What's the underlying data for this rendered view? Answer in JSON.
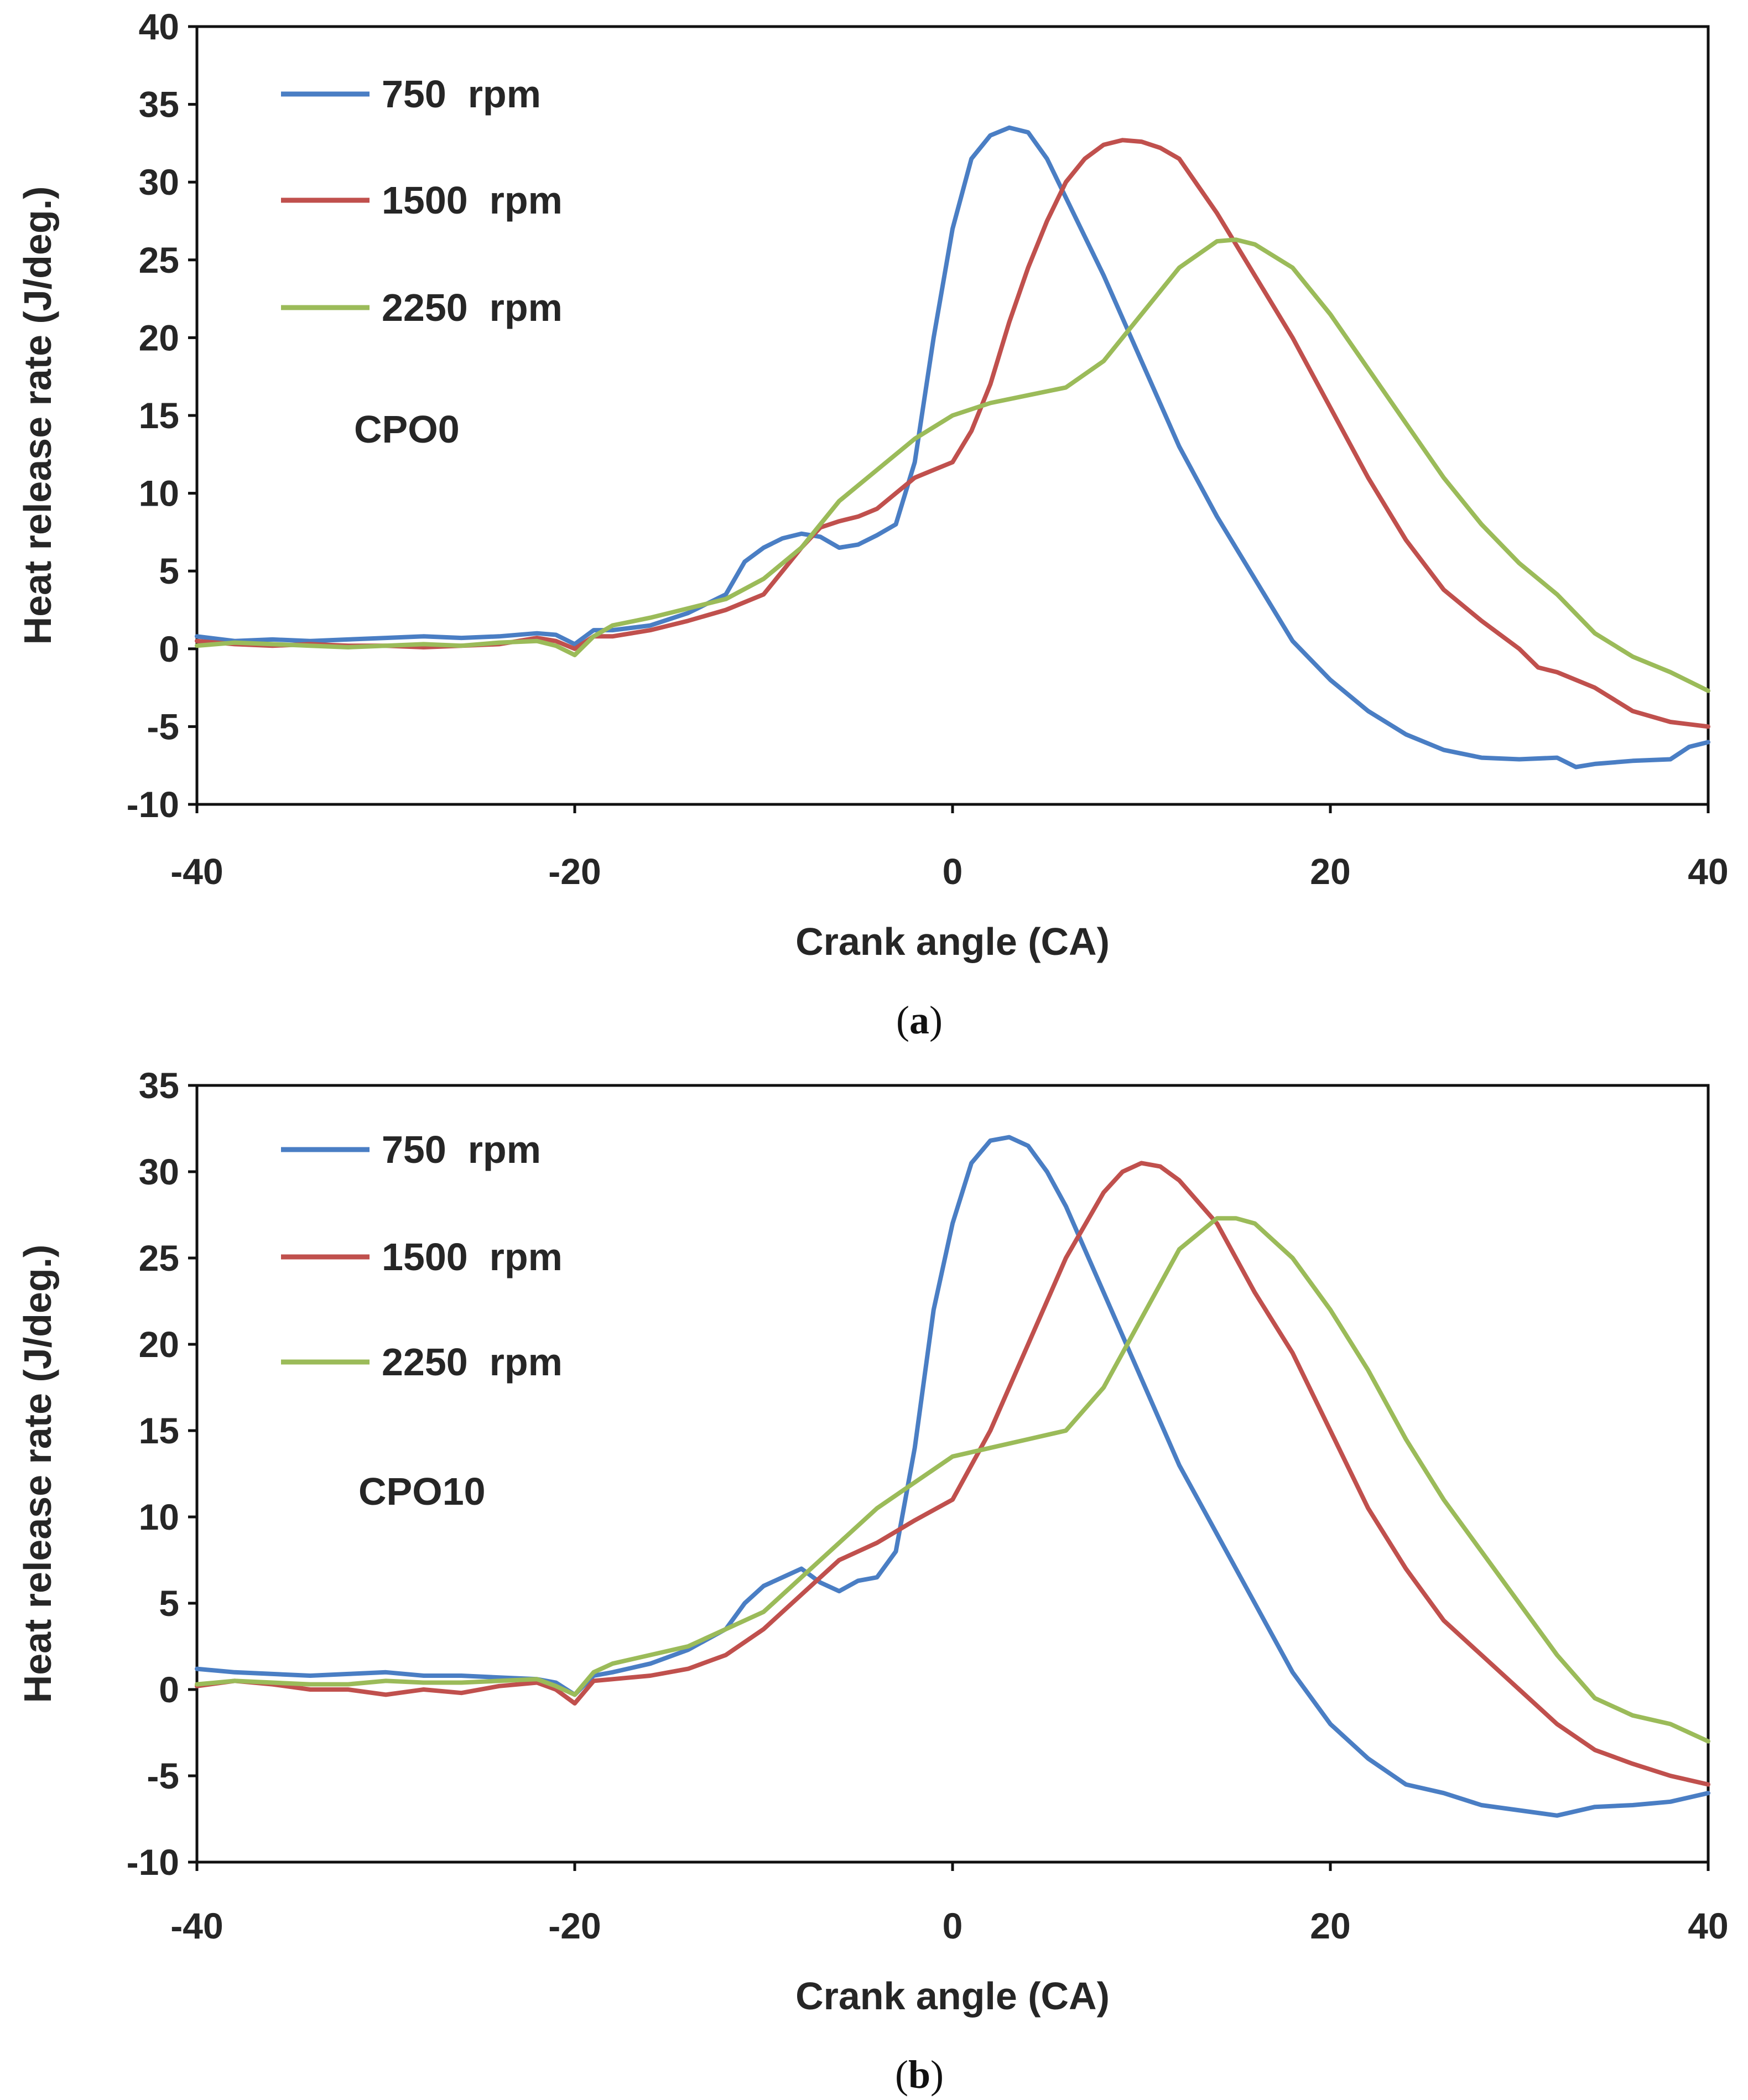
{
  "colors": {
    "s750": "#4A7EC4",
    "s1500": "#C0504D",
    "s2250": "#9BBB59"
  },
  "chart_data": [
    {
      "type": "line",
      "annotation": "CPO0",
      "caption": "(a)",
      "caption_letter": "a",
      "xlabel": "Crank angle (CA)",
      "ylabel": "Heat release rate (J/deg.)",
      "xlim": [
        -40,
        40
      ],
      "ylim": [
        -10,
        40
      ],
      "xticks": [
        -40,
        -20,
        0,
        20,
        40
      ],
      "yticks": [
        -10,
        -5,
        0,
        5,
        10,
        15,
        20,
        25,
        30,
        35,
        40
      ],
      "legend_position": "top-left",
      "series": [
        {
          "name": "750  rpm",
          "color_key": "s750",
          "x": [
            -40,
            -38,
            -36,
            -34,
            -32,
            -30,
            -28,
            -26,
            -24,
            -22,
            -21,
            -20,
            -19,
            -18,
            -16,
            -14,
            -12,
            -11,
            -10,
            -9,
            -8,
            -7,
            -6,
            -5,
            -4,
            -3,
            -2,
            -1,
            0,
            1,
            2,
            3,
            4,
            5,
            6,
            8,
            10,
            12,
            14,
            16,
            18,
            20,
            22,
            24,
            26,
            28,
            30,
            32,
            33,
            34,
            36,
            38,
            39,
            40
          ],
          "y": [
            0.8,
            0.5,
            0.6,
            0.5,
            0.6,
            0.7,
            0.8,
            0.7,
            0.8,
            1,
            0.9,
            0.3,
            1.2,
            1.2,
            1.5,
            2.3,
            3.5,
            5.6,
            6.5,
            7.1,
            7.4,
            7.2,
            6.5,
            6.7,
            7.3,
            8,
            12,
            20,
            27,
            31.5,
            33,
            33.5,
            33.2,
            31.5,
            29,
            24,
            18.5,
            13,
            8.5,
            4.5,
            0.5,
            -2,
            -4,
            -5.5,
            -6.5,
            -7,
            -7.1,
            -7,
            -7.6,
            -7.4,
            -7.2,
            -7.1,
            -6.3,
            -6
          ]
        },
        {
          "name": "1500  rpm",
          "color_key": "s1500",
          "x": [
            -40,
            -38,
            -36,
            -34,
            -32,
            -30,
            -28,
            -26,
            -24,
            -22,
            -21,
            -20,
            -19,
            -18,
            -16,
            -14,
            -12,
            -10,
            -9,
            -8,
            -7,
            -6,
            -5,
            -4,
            -3,
            -2,
            -1,
            0,
            1,
            2,
            3,
            4,
            5,
            6,
            7,
            8,
            9,
            10,
            11,
            12,
            14,
            16,
            18,
            20,
            22,
            24,
            26,
            28,
            30,
            31,
            32,
            34,
            36,
            38,
            40
          ],
          "y": [
            0.5,
            0.3,
            0.2,
            0.3,
            0.2,
            0.2,
            0.1,
            0.2,
            0.3,
            0.7,
            0.5,
            0,
            0.8,
            0.8,
            1.2,
            1.8,
            2.5,
            3.5,
            5,
            6.5,
            7.8,
            8.2,
            8.5,
            9,
            10,
            11,
            11.5,
            12,
            14,
            17,
            21,
            24.5,
            27.5,
            30,
            31.5,
            32.4,
            32.7,
            32.6,
            32.2,
            31.5,
            28,
            24,
            20,
            15.5,
            11,
            7,
            3.8,
            1.8,
            0,
            -1.2,
            -1.5,
            -2.5,
            -4,
            -4.7,
            -5
          ]
        },
        {
          "name": "2250  rpm",
          "color_key": "s2250",
          "x": [
            -40,
            -38,
            -36,
            -34,
            -32,
            -30,
            -28,
            -26,
            -24,
            -22,
            -21,
            -20,
            -19,
            -18,
            -16,
            -14,
            -12,
            -10,
            -8,
            -6,
            -4,
            -2,
            0,
            2,
            4,
            6,
            8,
            10,
            12,
            14,
            15,
            16,
            18,
            20,
            22,
            24,
            26,
            28,
            30,
            32,
            34,
            36,
            38,
            40
          ],
          "y": [
            0.2,
            0.4,
            0.3,
            0.2,
            0.1,
            0.2,
            0.3,
            0.2,
            0.4,
            0.5,
            0.2,
            -0.4,
            0.8,
            1.5,
            2,
            2.6,
            3.2,
            4.5,
            6.5,
            9.5,
            11.5,
            13.5,
            15,
            15.8,
            16.3,
            16.8,
            18.5,
            21.5,
            24.5,
            26.2,
            26.3,
            26,
            24.5,
            21.5,
            18,
            14.5,
            11,
            8,
            5.5,
            3.5,
            1,
            -0.5,
            -1.5,
            -2.7
          ]
        }
      ]
    },
    {
      "type": "line",
      "annotation": "CPO10",
      "caption": "(b)",
      "caption_letter": "b",
      "xlabel": "Crank angle (CA)",
      "ylabel": "Heat release rate (J/deg.)",
      "xlim": [
        -40,
        40
      ],
      "ylim": [
        -10,
        35
      ],
      "xticks": [
        -40,
        -20,
        0,
        20,
        40
      ],
      "yticks": [
        -10,
        -5,
        0,
        5,
        10,
        15,
        20,
        25,
        30,
        35
      ],
      "legend_position": "top-left",
      "series": [
        {
          "name": "750  rpm",
          "color_key": "s750",
          "x": [
            -40,
            -38,
            -36,
            -34,
            -32,
            -30,
            -28,
            -26,
            -24,
            -22,
            -21,
            -20,
            -19,
            -18,
            -16,
            -14,
            -12,
            -11,
            -10,
            -9,
            -8,
            -7,
            -6,
            -5,
            -4,
            -3,
            -2,
            -1,
            0,
            1,
            2,
            3,
            4,
            5,
            6,
            8,
            10,
            12,
            14,
            16,
            18,
            20,
            22,
            24,
            26,
            28,
            30,
            32,
            34,
            36,
            38,
            40
          ],
          "y": [
            1.2,
            1,
            0.9,
            0.8,
            0.9,
            1,
            0.8,
            0.8,
            0.7,
            0.6,
            0.4,
            -0.3,
            0.8,
            1,
            1.5,
            2.3,
            3.5,
            5,
            6,
            6.5,
            7,
            6.2,
            5.7,
            6.3,
            6.5,
            8,
            14,
            22,
            27,
            30.5,
            31.8,
            32,
            31.5,
            30,
            28,
            23,
            18,
            13,
            9,
            5,
            1,
            -2,
            -4,
            -5.5,
            -6,
            -6.7,
            -7,
            -7.3,
            -6.8,
            -6.7,
            -6.5,
            -6
          ]
        },
        {
          "name": "1500  rpm",
          "color_key": "s1500",
          "x": [
            -40,
            -38,
            -36,
            -34,
            -32,
            -30,
            -28,
            -26,
            -24,
            -22,
            -21,
            -20,
            -19,
            -18,
            -16,
            -14,
            -12,
            -10,
            -8,
            -6,
            -4,
            -2,
            0,
            2,
            4,
            6,
            8,
            9,
            10,
            11,
            12,
            14,
            16,
            18,
            20,
            22,
            24,
            26,
            28,
            30,
            32,
            34,
            36,
            38,
            40
          ],
          "y": [
            0.2,
            0.5,
            0.3,
            0,
            0,
            -0.3,
            0,
            -0.2,
            0.2,
            0.4,
            0,
            -0.8,
            0.5,
            0.6,
            0.8,
            1.2,
            2,
            3.5,
            5.5,
            7.5,
            8.5,
            9.8,
            11,
            15,
            20,
            25,
            28.8,
            30,
            30.5,
            30.3,
            29.5,
            27,
            23,
            19.5,
            15,
            10.5,
            7,
            4,
            2,
            0,
            -2,
            -3.5,
            -4.3,
            -5,
            -5.5
          ]
        },
        {
          "name": "2250  rpm",
          "color_key": "s2250",
          "x": [
            -40,
            -38,
            -36,
            -34,
            -32,
            -30,
            -28,
            -26,
            -24,
            -22,
            -21,
            -20,
            -19,
            -18,
            -16,
            -14,
            -12,
            -10,
            -8,
            -6,
            -4,
            -2,
            0,
            2,
            4,
            6,
            8,
            10,
            12,
            14,
            15,
            16,
            18,
            20,
            22,
            24,
            26,
            28,
            30,
            32,
            34,
            36,
            38,
            40
          ],
          "y": [
            0.3,
            0.5,
            0.4,
            0.3,
            0.3,
            0.5,
            0.4,
            0.4,
            0.5,
            0.6,
            0.2,
            -0.3,
            1,
            1.5,
            2,
            2.5,
            3.5,
            4.5,
            6.5,
            8.5,
            10.5,
            12,
            13.5,
            14,
            14.5,
            15,
            17.5,
            21.5,
            25.5,
            27.3,
            27.3,
            27,
            25,
            22,
            18.5,
            14.5,
            11,
            8,
            5,
            2,
            -0.5,
            -1.5,
            -2,
            -3
          ]
        }
      ]
    }
  ]
}
